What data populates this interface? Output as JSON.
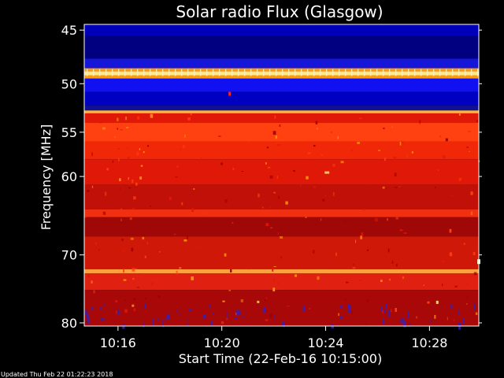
{
  "chart_data": {
    "type": "heatmap",
    "title": "Solar radio Flux (Glasgow)",
    "xlabel": "Start Time (22-Feb-16 10:15:00)",
    "ylabel": "Frequency [MHz]",
    "footer": "Updated Thu Feb 22 01:22:23 2018",
    "x_ticks": [
      "10:16",
      "10:20",
      "10:24",
      "10:28"
    ],
    "y_ticks": [
      "45",
      "50",
      "55",
      "60",
      "70",
      "80"
    ],
    "y_scale": "log",
    "ylim": [
      44.5,
      80.5
    ],
    "xlim_minutes_after_10_00": [
      14.7,
      29.9
    ],
    "bands": [
      {
        "f_lo": 44.5,
        "f_hi": 45.5,
        "color": "#0000b8"
      },
      {
        "f_lo": 45.5,
        "f_hi": 47.6,
        "color": "#000080"
      },
      {
        "f_lo": 47.6,
        "f_hi": 48.5,
        "color": "#1616d8"
      },
      {
        "f_lo": 48.5,
        "f_hi": 48.8,
        "color": "#ff9a10"
      },
      {
        "f_lo": 48.8,
        "f_hi": 49.2,
        "color": "#ffe890"
      },
      {
        "f_lo": 49.2,
        "f_hi": 49.5,
        "color": "#ff9a10"
      },
      {
        "f_lo": 49.5,
        "f_hi": 50.8,
        "color": "#1010f0"
      },
      {
        "f_lo": 50.8,
        "f_hi": 52.2,
        "color": "#0000c0"
      },
      {
        "f_lo": 52.2,
        "f_hi": 52.7,
        "color": "#101098"
      },
      {
        "f_lo": 52.7,
        "f_hi": 53.0,
        "color": "#ffb040"
      },
      {
        "f_lo": 53.0,
        "f_hi": 54.0,
        "color": "#e01808"
      },
      {
        "f_lo": 54.0,
        "f_hi": 56.0,
        "color": "#ff4010"
      },
      {
        "f_lo": 56.0,
        "f_hi": 58.0,
        "color": "#f02808"
      },
      {
        "f_lo": 58.0,
        "f_hi": 61.0,
        "color": "#e01808"
      },
      {
        "f_lo": 61.0,
        "f_hi": 64.0,
        "color": "#c01008"
      },
      {
        "f_lo": 64.0,
        "f_hi": 65.0,
        "color": "#f03010"
      },
      {
        "f_lo": 65.0,
        "f_hi": 67.5,
        "color": "#a00808"
      },
      {
        "f_lo": 67.5,
        "f_hi": 72.0,
        "color": "#d01808"
      },
      {
        "f_lo": 72.0,
        "f_hi": 72.6,
        "color": "#ffa040"
      },
      {
        "f_lo": 72.6,
        "f_hi": 75.0,
        "color": "#e02010"
      },
      {
        "f_lo": 75.0,
        "f_hi": 80.5,
        "color": "#a80808"
      }
    ],
    "colormap": [
      "#000060",
      "#0000c0",
      "#1414ff",
      "#a00000",
      "#e01808",
      "#ff4010",
      "#ff9a10",
      "#ffe890"
    ],
    "colors": {
      "background": "#000000",
      "text": "#ffffff",
      "axis": "#ffffff"
    }
  }
}
